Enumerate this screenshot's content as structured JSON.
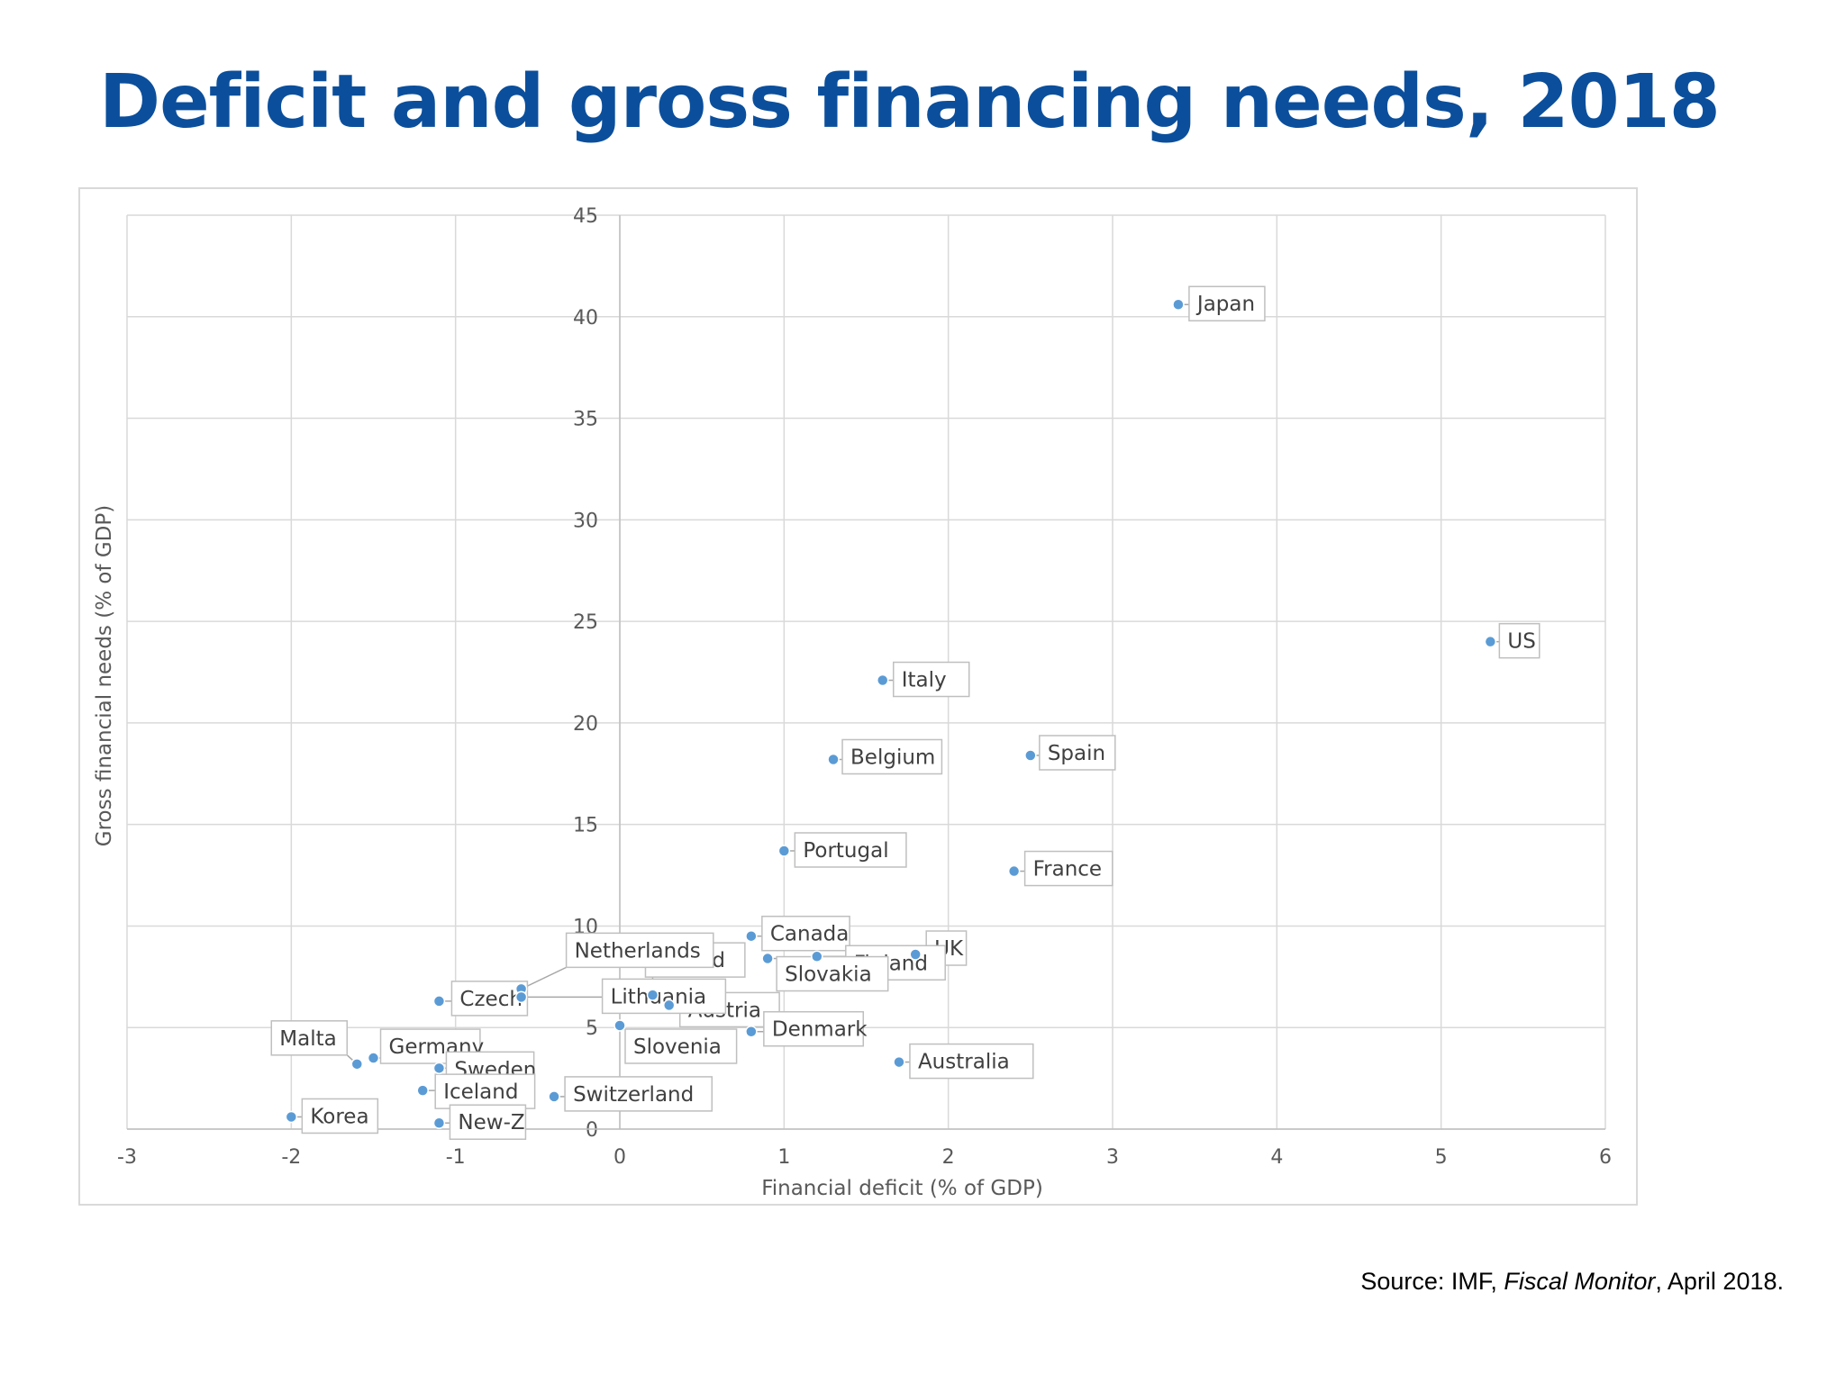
{
  "slide": {
    "title": "Deficit and gross financing needs, 2018",
    "source_prefix": "Source: IMF, ",
    "source_italic": "Fiscal Monitor",
    "source_suffix": ", April 2018."
  },
  "colors": {
    "title": "#0b4f9c",
    "marker": "#5b9bd5",
    "grid": "#d9d9d9",
    "text": "#595959"
  },
  "chart_data": {
    "type": "scatter",
    "title": "",
    "xlabel": "Financial deficit (% of GDP)",
    "ylabel": "Gross financial needs (% of GDP)",
    "xlim": [
      -3,
      6
    ],
    "ylim": [
      0,
      45
    ],
    "xticks": [
      -3,
      -2,
      -1,
      0,
      1,
      2,
      3,
      4,
      5,
      6
    ],
    "yticks": [
      0,
      5,
      10,
      15,
      20,
      25,
      30,
      35,
      40,
      45
    ],
    "grid": true,
    "legend": "none",
    "points": [
      {
        "label": "Japan",
        "x": 3.4,
        "y": 40.6
      },
      {
        "label": "US",
        "x": 5.3,
        "y": 24.0
      },
      {
        "label": "Italy",
        "x": 1.6,
        "y": 22.1
      },
      {
        "label": "Belgium",
        "x": 1.3,
        "y": 18.2
      },
      {
        "label": "Spain",
        "x": 2.5,
        "y": 18.4
      },
      {
        "label": "Portugal",
        "x": 1.0,
        "y": 13.7
      },
      {
        "label": "France",
        "x": 2.4,
        "y": 12.7
      },
      {
        "label": "Canada",
        "x": 0.8,
        "y": 9.5
      },
      {
        "label": "UK",
        "x": 1.8,
        "y": 8.6
      },
      {
        "label": "Finland",
        "x": 1.2,
        "y": 8.5
      },
      {
        "label": "Slovakia",
        "x": 0.9,
        "y": 8.4
      },
      {
        "label": "Ireland",
        "x": 0.2,
        "y": 6.6
      },
      {
        "label": "Austria",
        "x": 0.3,
        "y": 6.1
      },
      {
        "label": "Netherlands",
        "x": -0.6,
        "y": 6.9
      },
      {
        "label": "Czech",
        "x": -1.1,
        "y": 6.3
      },
      {
        "label": "Lithuania",
        "x": -0.6,
        "y": 6.5
      },
      {
        "label": "Denmark",
        "x": 0.8,
        "y": 4.8
      },
      {
        "label": "Slovenia",
        "x": 0.0,
        "y": 5.1
      },
      {
        "label": "Australia",
        "x": 1.7,
        "y": 3.3
      },
      {
        "label": "Malta",
        "x": -1.6,
        "y": 3.2
      },
      {
        "label": "Germany",
        "x": -1.5,
        "y": 3.5
      },
      {
        "label": "Sweden",
        "x": -1.1,
        "y": 3.0
      },
      {
        "label": "Iceland",
        "x": -1.2,
        "y": 1.9
      },
      {
        "label": "Switzerland",
        "x": -0.4,
        "y": 1.6
      },
      {
        "label": "Korea",
        "x": -2.0,
        "y": 0.6
      },
      {
        "label": "New-Z",
        "x": -1.1,
        "y": 0.3
      }
    ]
  }
}
